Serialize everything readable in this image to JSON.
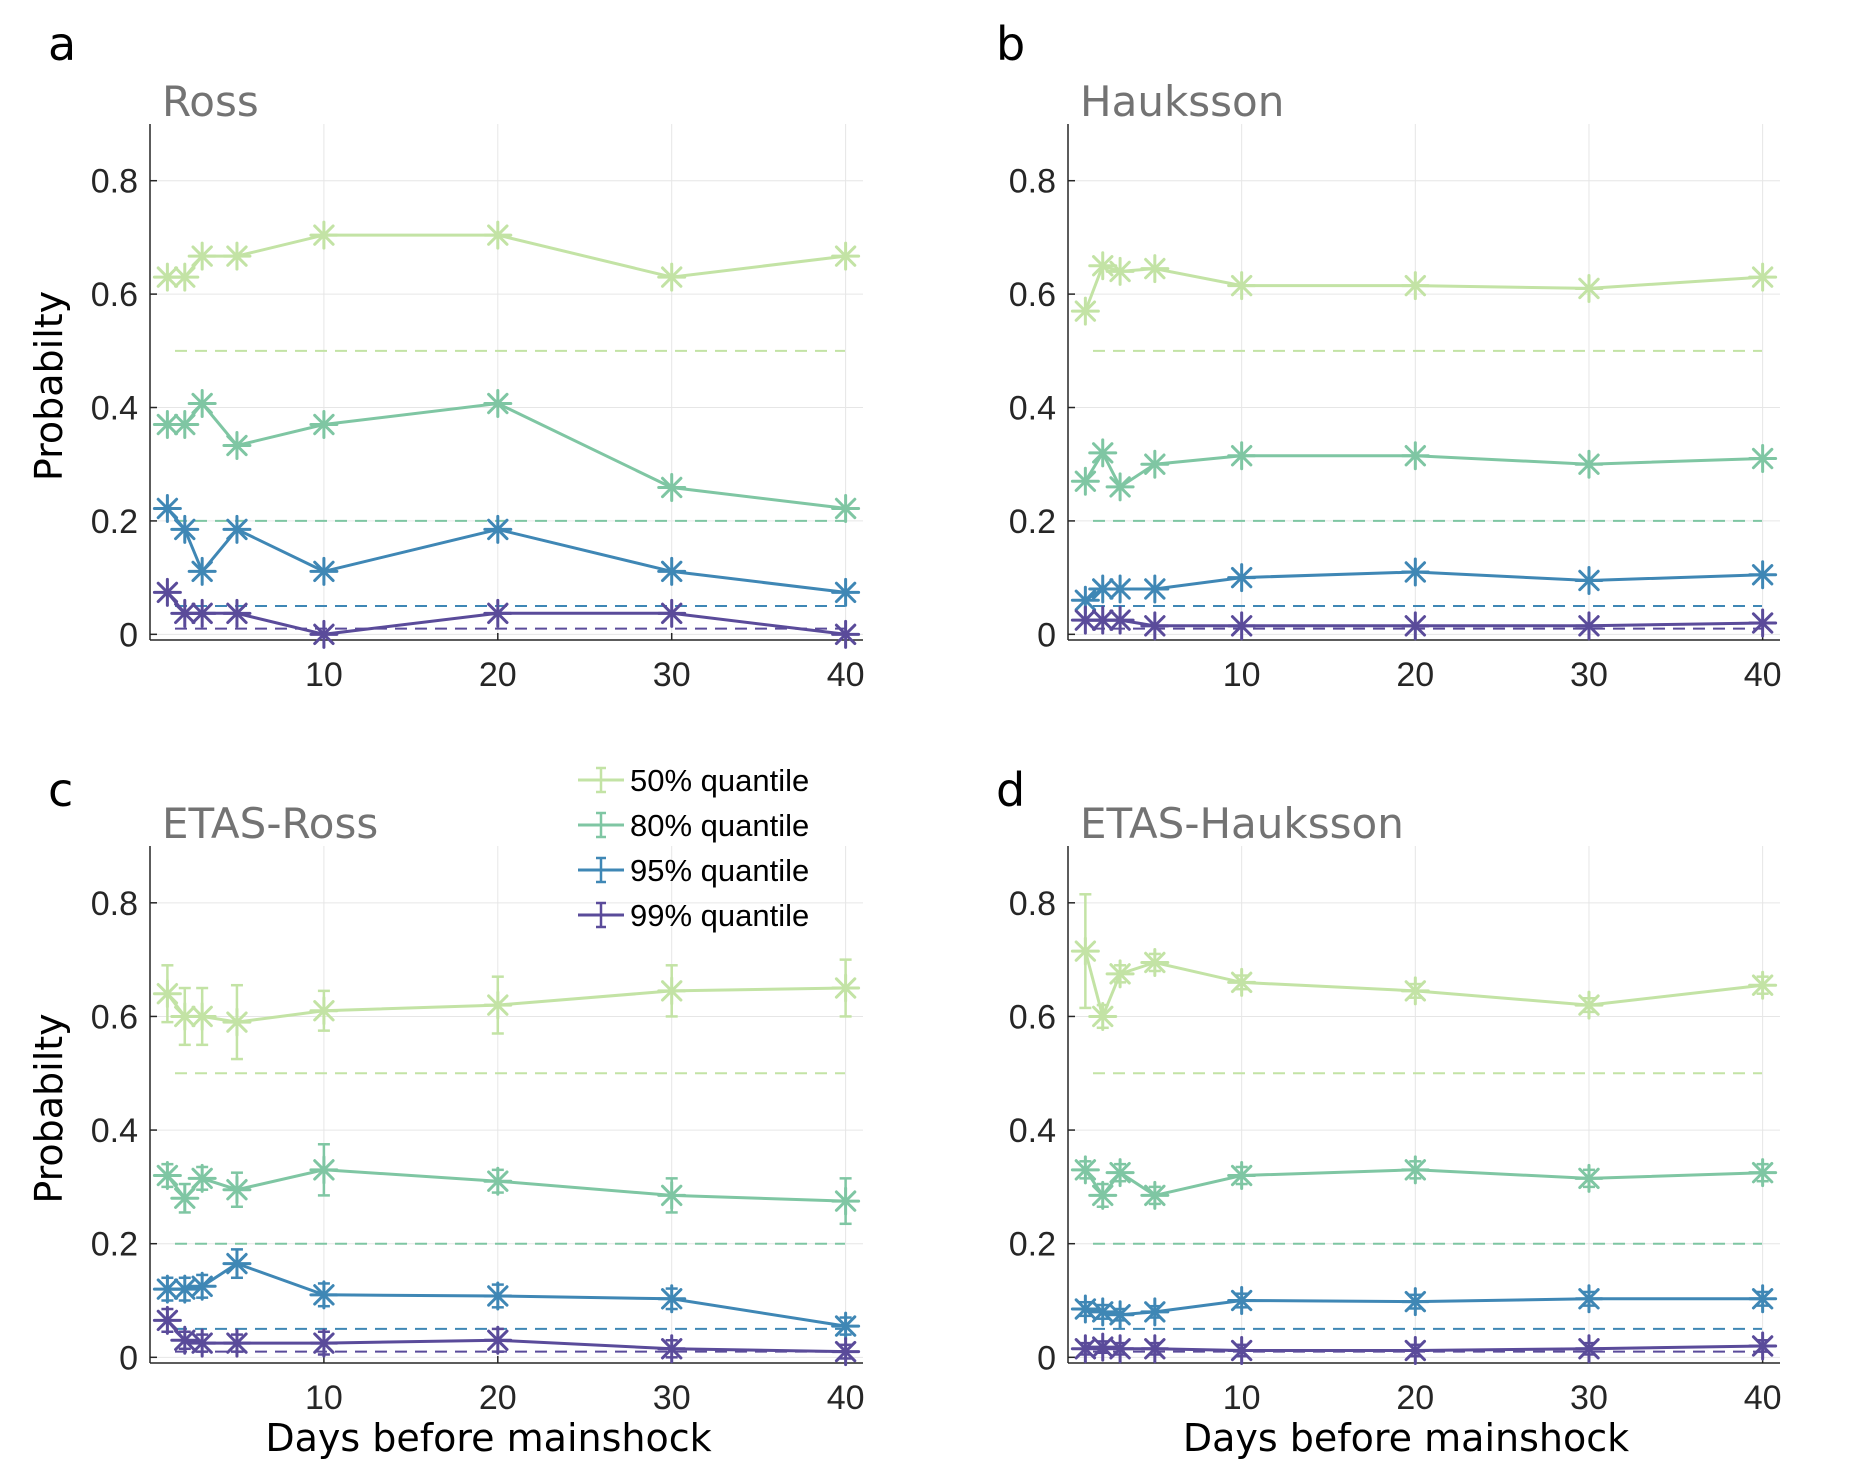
{
  "chart_data": [
    {
      "type": "line",
      "panel": "a",
      "title": "Ross",
      "xlabel": "",
      "ylabel": "Probabilty",
      "xlim": [
        0,
        41
      ],
      "ylim": [
        -0.01,
        0.9
      ],
      "xticks": [
        10,
        20,
        30,
        40
      ],
      "yticks": [
        0,
        0.2,
        0.4,
        0.6,
        0.8
      ],
      "grid": true,
      "x": [
        1,
        2,
        3,
        5,
        10,
        20,
        30,
        40
      ],
      "series": [
        {
          "name": "50% quantile",
          "color": "#c3e3a5",
          "values": [
            0.63,
            0.63,
            0.667,
            0.667,
            0.704,
            0.704,
            0.63,
            0.667
          ],
          "threshold": 0.5
        },
        {
          "name": "80% quantile",
          "color": "#7fc6a3",
          "values": [
            0.37,
            0.37,
            0.407,
            0.333,
            0.37,
            0.407,
            0.259,
            0.222
          ],
          "threshold": 0.2
        },
        {
          "name": "95% quantile",
          "color": "#3f87b5",
          "values": [
            0.222,
            0.185,
            0.111,
            0.185,
            0.111,
            0.185,
            0.111,
            0.074
          ],
          "threshold": 0.05
        },
        {
          "name": "99% quantile",
          "color": "#5a4b9a",
          "values": [
            0.074,
            0.037,
            0.037,
            0.037,
            0.0,
            0.037,
            0.037,
            0.0
          ],
          "threshold": 0.01
        }
      ]
    },
    {
      "type": "line",
      "panel": "b",
      "title": "Hauksson",
      "xlabel": "",
      "ylabel": "",
      "xlim": [
        0,
        41
      ],
      "ylim": [
        -0.01,
        0.9
      ],
      "xticks": [
        10,
        20,
        30,
        40
      ],
      "yticks": [
        0,
        0.2,
        0.4,
        0.6,
        0.8
      ],
      "grid": true,
      "x": [
        1,
        2,
        3,
        5,
        10,
        20,
        30,
        40
      ],
      "series": [
        {
          "name": "50% quantile",
          "color": "#c3e3a5",
          "values": [
            0.57,
            0.65,
            0.64,
            0.645,
            0.615,
            0.615,
            0.61,
            0.63
          ],
          "threshold": 0.5
        },
        {
          "name": "80% quantile",
          "color": "#7fc6a3",
          "values": [
            0.27,
            0.32,
            0.26,
            0.3,
            0.315,
            0.315,
            0.3,
            0.31
          ],
          "threshold": 0.2
        },
        {
          "name": "95% quantile",
          "color": "#3f87b5",
          "values": [
            0.06,
            0.08,
            0.08,
            0.08,
            0.1,
            0.11,
            0.095,
            0.105
          ],
          "threshold": 0.05
        },
        {
          "name": "99% quantile",
          "color": "#5a4b9a",
          "values": [
            0.025,
            0.025,
            0.025,
            0.015,
            0.015,
            0.015,
            0.015,
            0.02
          ],
          "threshold": 0.01
        }
      ]
    },
    {
      "type": "line",
      "panel": "c",
      "title": "ETAS-Ross",
      "xlabel": "Days before mainshock",
      "ylabel": "Probabilty",
      "xlim": [
        0,
        41
      ],
      "ylim": [
        -0.01,
        0.9
      ],
      "xticks": [
        10,
        20,
        30,
        40
      ],
      "yticks": [
        0,
        0.2,
        0.4,
        0.6,
        0.8
      ],
      "grid": true,
      "x": [
        1,
        2,
        3,
        5,
        10,
        20,
        30,
        40
      ],
      "series": [
        {
          "name": "50% quantile",
          "color": "#c3e3a5",
          "values": [
            0.64,
            0.6,
            0.6,
            0.59,
            0.61,
            0.62,
            0.645,
            0.65
          ],
          "err": [
            0.05,
            0.05,
            0.05,
            0.065,
            0.035,
            0.05,
            0.045,
            0.05
          ],
          "threshold": 0.5
        },
        {
          "name": "80% quantile",
          "color": "#7fc6a3",
          "values": [
            0.32,
            0.28,
            0.315,
            0.295,
            0.33,
            0.31,
            0.285,
            0.275
          ],
          "err": [
            0.02,
            0.025,
            0.02,
            0.03,
            0.045,
            0.02,
            0.03,
            0.04
          ],
          "threshold": 0.2
        },
        {
          "name": "95% quantile",
          "color": "#3f87b5",
          "values": [
            0.12,
            0.12,
            0.125,
            0.165,
            0.11,
            0.108,
            0.103,
            0.055
          ],
          "err": [
            0.02,
            0.02,
            0.02,
            0.025,
            0.02,
            0.02,
            0.018,
            0.015
          ],
          "threshold": 0.05
        },
        {
          "name": "99% quantile",
          "color": "#5a4b9a",
          "values": [
            0.065,
            0.03,
            0.025,
            0.025,
            0.025,
            0.03,
            0.015,
            0.01
          ],
          "err": [
            0.02,
            0.015,
            0.015,
            0.015,
            0.02,
            0.02,
            0.015,
            0.012
          ],
          "threshold": 0.01
        }
      ],
      "legend": {
        "position": "top-right",
        "entries": [
          "50% quantile",
          "80% quantile",
          "95% quantile",
          "99% quantile"
        ]
      }
    },
    {
      "type": "line",
      "panel": "d",
      "title": "ETAS-Hauksson",
      "xlabel": "Days before mainshock",
      "ylabel": "",
      "xlim": [
        0,
        41
      ],
      "ylim": [
        -0.01,
        0.9
      ],
      "xticks": [
        10,
        20,
        30,
        40
      ],
      "yticks": [
        0,
        0.2,
        0.4,
        0.6,
        0.8
      ],
      "grid": true,
      "x": [
        1,
        2,
        3,
        5,
        10,
        20,
        30,
        40
      ],
      "series": [
        {
          "name": "50% quantile",
          "color": "#c3e3a5",
          "values": [
            0.715,
            0.6,
            0.675,
            0.695,
            0.66,
            0.645,
            0.62,
            0.655
          ],
          "err": [
            0.1,
            0.02,
            0.015,
            0.015,
            0.012,
            0.012,
            0.012,
            0.015
          ],
          "threshold": 0.5
        },
        {
          "name": "80% quantile",
          "color": "#7fc6a3",
          "values": [
            0.33,
            0.285,
            0.325,
            0.285,
            0.32,
            0.33,
            0.315,
            0.325
          ],
          "err": [
            0.015,
            0.02,
            0.015,
            0.015,
            0.015,
            0.015,
            0.015,
            0.015
          ],
          "threshold": 0.2
        },
        {
          "name": "95% quantile",
          "color": "#3f87b5",
          "values": [
            0.085,
            0.08,
            0.075,
            0.08,
            0.1,
            0.098,
            0.103,
            0.103
          ],
          "err": [
            0.012,
            0.012,
            0.01,
            0.01,
            0.012,
            0.012,
            0.012,
            0.012
          ],
          "threshold": 0.05
        },
        {
          "name": "99% quantile",
          "color": "#5a4b9a",
          "values": [
            0.015,
            0.018,
            0.015,
            0.015,
            0.012,
            0.012,
            0.015,
            0.02
          ],
          "err": [
            0.01,
            0.01,
            0.01,
            0.01,
            0.01,
            0.01,
            0.01,
            0.01
          ],
          "threshold": 0.01
        }
      ]
    }
  ]
}
